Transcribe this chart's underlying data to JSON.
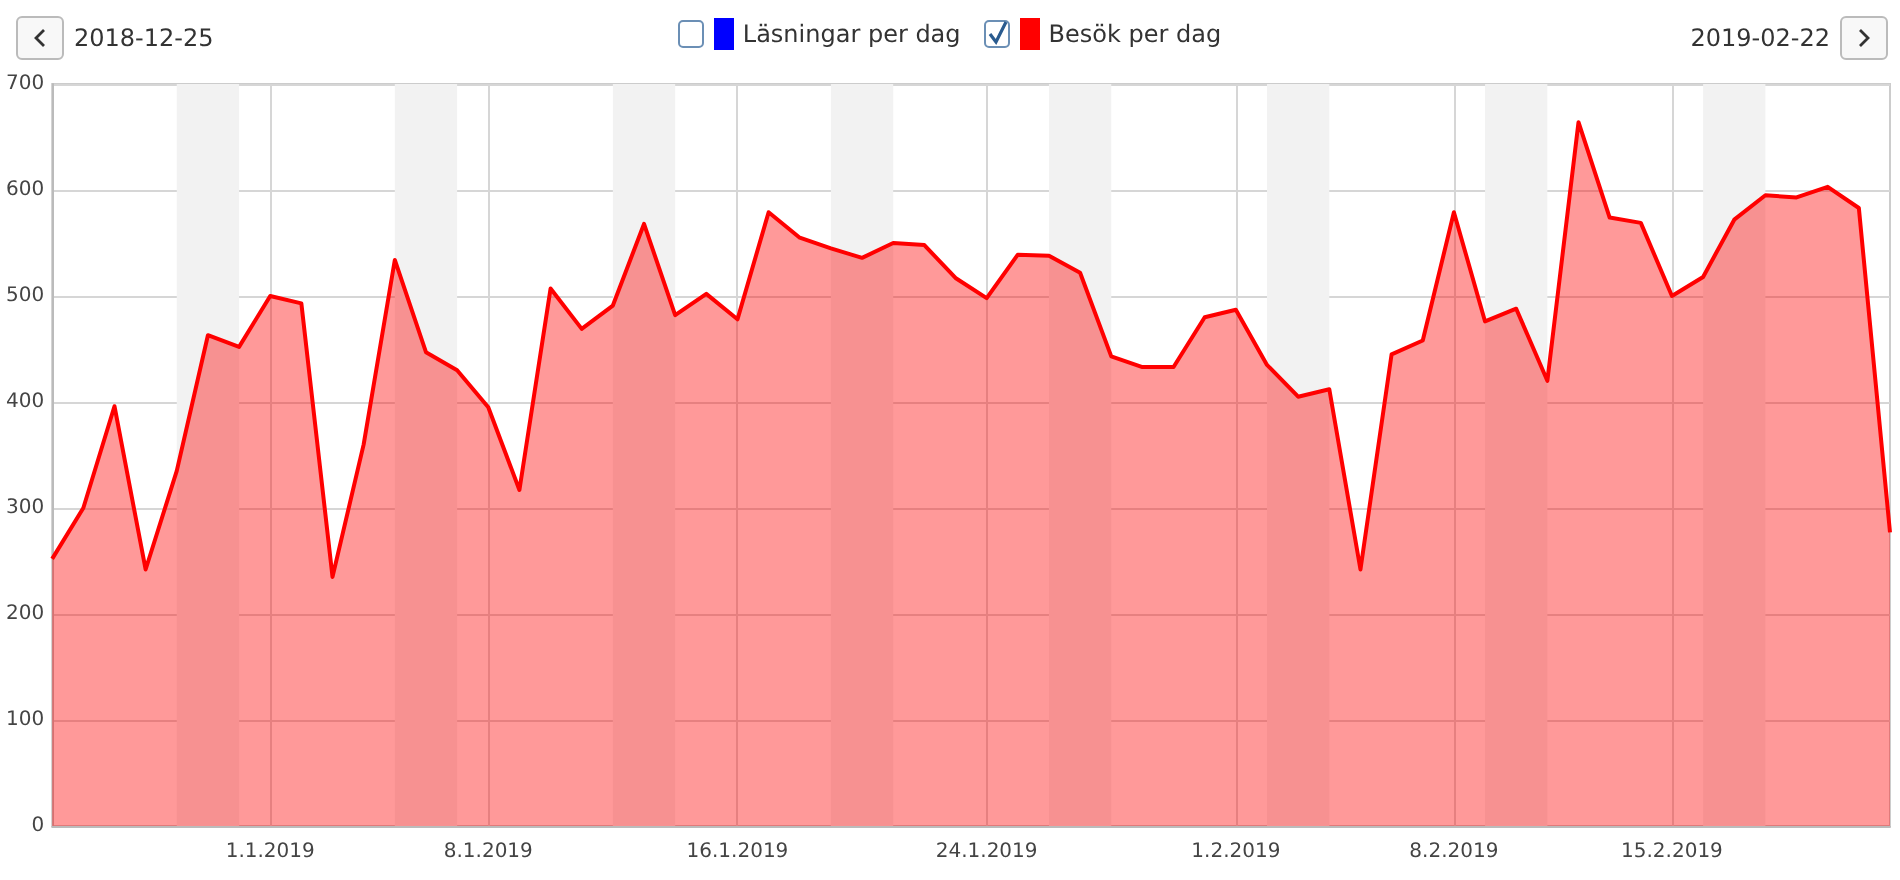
{
  "chart_data": {
    "type": "area",
    "x": [
      "2018-12-25",
      "2018-12-26",
      "2018-12-27",
      "2018-12-28",
      "2018-12-29",
      "2018-12-30",
      "2018-12-31",
      "2019-01-01",
      "2019-01-02",
      "2019-01-03",
      "2019-01-04",
      "2019-01-05",
      "2019-01-06",
      "2019-01-07",
      "2019-01-08",
      "2019-01-09",
      "2019-01-10",
      "2019-01-11",
      "2019-01-12",
      "2019-01-13",
      "2019-01-14",
      "2019-01-15",
      "2019-01-16",
      "2019-01-17",
      "2019-01-18",
      "2019-01-19",
      "2019-01-20",
      "2019-01-21",
      "2019-01-22",
      "2019-01-23",
      "2019-01-24",
      "2019-01-25",
      "2019-01-26",
      "2019-01-27",
      "2019-01-28",
      "2019-01-29",
      "2019-01-30",
      "2019-01-31",
      "2019-02-01",
      "2019-02-02",
      "2019-02-03",
      "2019-02-04",
      "2019-02-05",
      "2019-02-06",
      "2019-02-07",
      "2019-02-08",
      "2019-02-09",
      "2019-02-10",
      "2019-02-11",
      "2019-02-12",
      "2019-02-13",
      "2019-02-14",
      "2019-02-15",
      "2019-02-16",
      "2019-02-17",
      "2019-02-18",
      "2019-02-19",
      "2019-02-20",
      "2019-02-21",
      "2019-02-22"
    ],
    "series": [
      {
        "name": "Läsningar per dag",
        "color": "#0000ff",
        "values": [
          null,
          null,
          null,
          null,
          null,
          null,
          null,
          null,
          null,
          null,
          null,
          null,
          null,
          null,
          null,
          null,
          null,
          null,
          null,
          null,
          null,
          null,
          null,
          null,
          null,
          null,
          null,
          null,
          null,
          null,
          null,
          null,
          null,
          null,
          null,
          null,
          null,
          null,
          null,
          null,
          null,
          null,
          null,
          null,
          null,
          null,
          null,
          null,
          null,
          null,
          null,
          null,
          null,
          null,
          null,
          null,
          null,
          null,
          null,
          null
        ]
      },
      {
        "name": "Besök per dag",
        "color": "#ff0000",
        "values": [
          252,
          300,
          396,
          242,
          335,
          463,
          452,
          500,
          493,
          235,
          360,
          534,
          447,
          430,
          395,
          317,
          507,
          469,
          491,
          568,
          482,
          502,
          478,
          579,
          555,
          545,
          536,
          550,
          548,
          517,
          498,
          539,
          538,
          522,
          443,
          433,
          433,
          480,
          487,
          435,
          405,
          412,
          242,
          445,
          458,
          579,
          476,
          488,
          420,
          664,
          574,
          569,
          500,
          518,
          572,
          595,
          593,
          603,
          583,
          277
        ]
      }
    ],
    "xlim": [
      "2018-12-25",
      "2019-02-22"
    ],
    "xticks": [
      {
        "value": "2019-01-01",
        "label": "1.1.2019"
      },
      {
        "value": "2019-01-08",
        "label": "8.1.2019"
      },
      {
        "value": "2019-01-16",
        "label": "16.1.2019"
      },
      {
        "value": "2019-01-24",
        "label": "24.1.2019"
      },
      {
        "value": "2019-02-01",
        "label": "1.2.2019"
      },
      {
        "value": "2019-02-08",
        "label": "8.2.2019"
      },
      {
        "value": "2019-02-15",
        "label": "15.2.2019"
      }
    ],
    "ylim": [
      0,
      700
    ],
    "yticks": [
      0,
      100,
      200,
      300,
      400,
      500,
      600,
      700
    ],
    "bands": [
      {
        "axis": "x",
        "from": "2018-12-29",
        "to": "2018-12-31",
        "color": "#f2f2f2"
      },
      {
        "axis": "x",
        "from": "2019-01-05",
        "to": "2019-01-07",
        "color": "#f2f2f2"
      },
      {
        "axis": "x",
        "from": "2019-01-12",
        "to": "2019-01-14",
        "color": "#f2f2f2"
      },
      {
        "axis": "x",
        "from": "2019-01-19",
        "to": "2019-01-21",
        "color": "#f2f2f2"
      },
      {
        "axis": "x",
        "from": "2019-01-26",
        "to": "2019-01-28",
        "color": "#f2f2f2"
      },
      {
        "axis": "x",
        "from": "2019-02-02",
        "to": "2019-02-04",
        "color": "#f2f2f2"
      },
      {
        "axis": "x",
        "from": "2019-02-09",
        "to": "2019-02-11",
        "color": "#f2f2f2"
      },
      {
        "axis": "x",
        "from": "2019-02-16",
        "to": "2019-02-18",
        "color": "#f2f2f2"
      }
    ],
    "annotations": [
      "2018-12-25",
      "2019-02-22"
    ],
    "grid": true,
    "legend": "top",
    "marker": "none",
    "line_style": "solid"
  }
}
